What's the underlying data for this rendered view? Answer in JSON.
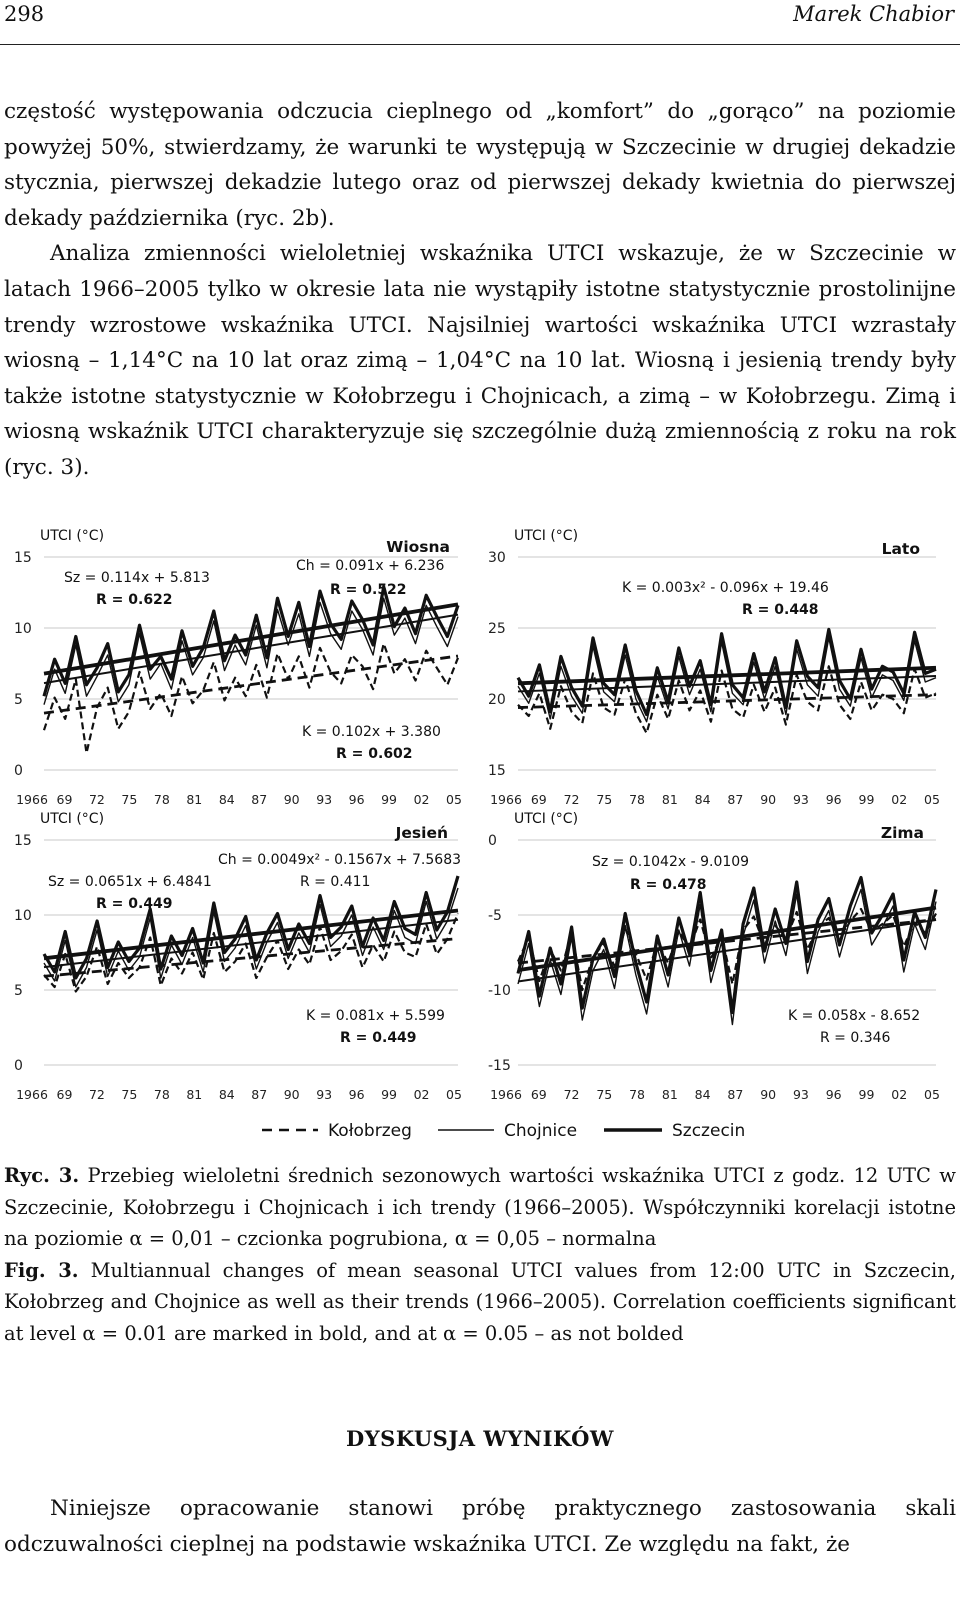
{
  "page_number": "298",
  "author": "Marek Chabior",
  "paragraph1": "częstość występowania odczucia cieplnego od „komfort” do „gorąco” na poziomie powyżej 50%, stwierdzamy, że warunki te występują w Szczecinie w drugiej dekadzie stycznia, pierwszej dekadzie lutego oraz od pierwszej dekady kwietnia do pierwszej dekady października (ryc. 2b).",
  "paragraph2": "Analiza zmienności wieloletniej wskaźnika UTCI wskazuje, że w Szczecinie w latach 1966–2005 tylko w okresie lata nie wystąpiły istotne statystycznie prostolinijne trendy wzrostowe wskaźnika UTCI. Najsilniej wartości wskaźnika UTCI wzrastały wiosną – 1,14°C na 10 lat oraz zimą – 1,04°C na 10 lat. Wiosną i jesienią trendy były także istotne statystycznie w Kołobrzegu i Chojnicach, a zimą – w Kołobrzegu. Zimą i wiosną wskaźnik UTCI charakteryzuje się szczególnie dużą zmiennością z roku na rok (ryc. 3).",
  "caption_pl_label": "Ryc. 3.",
  "caption_pl": "Przebieg wieloletni średnich sezonowych wartości wskaźnika UTCI z godz. 12 UTC w Szczecinie, Kołobrzegu i Chojnicach i ich trendy (1966–2005). Współczynniki korelacji istotne na poziomie α = 0,01 – czcionka pogrubiona, α = 0,05 – normalna",
  "caption_en_label": "Fig. 3.",
  "caption_en": "Multiannual changes of mean seasonal UTCI values from 12:00 UTC in Szczecin, Kołobrzeg and Chojnice as well as their trends (1966–2005). Correlation coefficients significant at level α = 0.01 are marked in bold, and at α = 0.05 – as not bolded",
  "section_heading": "DYSKUSJA WYNIKÓW",
  "paragraph3": "Niniejsze opracowanie stanowi próbę praktycznego zastosowania skali odczuwalności cieplnej na podstawie wskaźnika UTCI. Ze względu na fakt, że",
  "legend": [
    {
      "name": "Kołobrzeg",
      "style": "dashed"
    },
    {
      "name": "Chojnice",
      "style": "thin"
    },
    {
      "name": "Szczecin",
      "style": "thick"
    }
  ],
  "chart_data": [
    {
      "type": "line",
      "title": "Wiosna",
      "ylabel": "UTCI (°C)",
      "ylim": [
        0,
        15
      ],
      "yticks": [
        "15",
        "10",
        "5",
        "0"
      ],
      "xticks": [
        "1966",
        "69",
        "72",
        "75",
        "78",
        "81",
        "84",
        "87",
        "90",
        "93",
        "96",
        "99",
        "02",
        "05"
      ],
      "x_start": 1966,
      "annotations": [
        {
          "text": "Sz = 0.114x + 5.813",
          "bold": false
        },
        {
          "text": "R = 0.622",
          "bold": true
        },
        {
          "text": "Ch = 0.091x + 6.236",
          "bold": false
        },
        {
          "text": "R = 0.522",
          "bold": true
        },
        {
          "text": "K = 0.102x + 3.380",
          "bold": false
        },
        {
          "text": "R = 0.602",
          "bold": true
        }
      ],
      "series": [
        {
          "name": "Szczecin",
          "values": [
            5.2,
            7.8,
            6.1,
            9.4,
            6.0,
            7.2,
            8.9,
            5.5,
            6.7,
            10.2,
            7.1,
            8.0,
            6.4,
            9.8,
            7.3,
            8.6,
            11.2,
            7.7,
            9.5,
            8.1,
            10.9,
            7.9,
            12.1,
            9.4,
            11.8,
            8.7,
            12.6,
            10.3,
            9.2,
            11.9,
            10.6,
            8.8,
            12.9,
            10.1,
            11.4,
            9.6,
            12.3,
            10.8,
            9.4,
            11.6
          ]
        },
        {
          "name": "Chojnice",
          "values": [
            4.6,
            7.1,
            5.4,
            8.8,
            5.2,
            6.6,
            8.1,
            4.8,
            6.0,
            9.6,
            6.4,
            7.5,
            5.7,
            9.1,
            6.7,
            7.9,
            10.5,
            7.0,
            8.8,
            7.4,
            10.2,
            7.2,
            11.3,
            8.8,
            11.0,
            8.0,
            11.8,
            9.6,
            8.5,
            11.2,
            9.9,
            8.1,
            12.1,
            9.5,
            10.7,
            8.9,
            11.6,
            10.1,
            8.7,
            10.8
          ]
        },
        {
          "name": "Kołobrzeg",
          "values": [
            2.8,
            5.1,
            3.6,
            6.4,
            1.2,
            4.4,
            5.8,
            2.9,
            4.1,
            6.9,
            4.3,
            5.4,
            3.8,
            6.6,
            4.7,
            5.6,
            7.6,
            4.9,
            6.5,
            5.2,
            7.4,
            5.1,
            8.2,
            6.4,
            8.0,
            5.8,
            8.6,
            6.9,
            6.1,
            8.1,
            7.3,
            5.7,
            8.9,
            6.8,
            7.8,
            6.3,
            8.4,
            7.2,
            6.0,
            7.9
          ]
        }
      ]
    },
    {
      "type": "line",
      "title": "Lato",
      "ylabel": "UTCI (°C)",
      "ylim": [
        15,
        30
      ],
      "yticks": [
        "30",
        "25",
        "20",
        "15"
      ],
      "xticks": [
        "1966",
        "69",
        "72",
        "75",
        "78",
        "81",
        "84",
        "87",
        "90",
        "93",
        "96",
        "99",
        "02",
        "05"
      ],
      "x_start": 1966,
      "annotations": [
        {
          "text": "K = 0.003x² - 0.096x + 19.46",
          "bold": false
        },
        {
          "text": "R = 0.448",
          "bold": true
        }
      ],
      "series": [
        {
          "name": "Szczecin",
          "values": [
            21.5,
            20.2,
            22.4,
            19.1,
            23.0,
            20.8,
            19.5,
            24.3,
            21.1,
            20.3,
            23.8,
            20.6,
            18.9,
            22.2,
            19.8,
            23.6,
            20.9,
            22.7,
            19.6,
            24.6,
            21.0,
            20.1,
            23.2,
            20.5,
            22.9,
            19.4,
            24.1,
            21.6,
            20.8,
            24.9,
            21.3,
            20.0,
            23.5,
            20.7,
            22.3,
            21.9,
            20.4,
            24.7,
            21.8,
            22.1
          ]
        },
        {
          "name": "Chojnice",
          "values": [
            20.9,
            19.7,
            21.8,
            18.6,
            22.3,
            20.2,
            19.0,
            23.7,
            20.5,
            19.8,
            23.1,
            20.0,
            18.4,
            21.6,
            19.3,
            23.0,
            20.3,
            22.1,
            19.1,
            24.0,
            20.4,
            19.6,
            22.6,
            20.0,
            22.3,
            18.9,
            23.5,
            21.0,
            20.2,
            24.3,
            20.7,
            19.5,
            22.9,
            20.1,
            21.7,
            21.3,
            19.9,
            24.1,
            21.2,
            21.5
          ]
        },
        {
          "name": "Kołobrzeg",
          "values": [
            19.6,
            18.8,
            20.4,
            17.9,
            20.9,
            19.1,
            18.3,
            21.8,
            19.4,
            18.9,
            21.4,
            19.0,
            17.6,
            20.3,
            18.6,
            21.3,
            19.2,
            20.6,
            18.4,
            22.0,
            19.3,
            18.7,
            21.0,
            19.1,
            20.8,
            18.2,
            21.7,
            19.8,
            19.2,
            22.3,
            19.6,
            18.6,
            21.2,
            19.2,
            20.3,
            20.0,
            19.0,
            22.1,
            20.1,
            20.4
          ]
        }
      ]
    },
    {
      "type": "line",
      "title": "Jesień",
      "ylabel": "UTCI (°C)",
      "ylim": [
        0,
        15
      ],
      "yticks": [
        "15",
        "10",
        "5",
        "0"
      ],
      "xticks": [
        "1966",
        "69",
        "72",
        "75",
        "78",
        "81",
        "84",
        "87",
        "90",
        "93",
        "96",
        "99",
        "02",
        "05"
      ],
      "x_start": 1966,
      "annotations": [
        {
          "text": "Ch = 0.0049x² - 0.1567x + 7.5683",
          "bold": false
        },
        {
          "text": "R = 0.411",
          "bold": false
        },
        {
          "text": "Sz = 0.0651x + 6.4841",
          "bold": false
        },
        {
          "text": "R = 0.449",
          "bold": true
        },
        {
          "text": "K = 0.081x + 5.599",
          "bold": false
        },
        {
          "text": "R = 0.449",
          "bold": true
        }
      ],
      "series": [
        {
          "name": "Szczecin",
          "values": [
            7.4,
            6.2,
            8.9,
            5.8,
            7.1,
            9.6,
            6.5,
            8.2,
            6.9,
            7.8,
            10.4,
            6.4,
            8.6,
            7.3,
            9.1,
            6.8,
            10.8,
            7.5,
            8.4,
            9.9,
            7.0,
            8.8,
            10.1,
            7.7,
            9.4,
            8.1,
            11.3,
            8.5,
            9.2,
            10.6,
            7.9,
            9.8,
            8.3,
            10.9,
            9.1,
            8.7,
            11.5,
            9.0,
            10.2,
            12.6
          ]
        },
        {
          "name": "Chojnice",
          "values": [
            6.8,
            5.6,
            8.3,
            5.2,
            6.5,
            9.0,
            5.9,
            7.6,
            6.3,
            7.2,
            9.8,
            5.8,
            8.0,
            6.7,
            8.5,
            6.2,
            10.2,
            6.9,
            7.8,
            9.3,
            6.4,
            8.2,
            9.5,
            7.1,
            8.8,
            7.5,
            10.7,
            7.9,
            8.6,
            10.0,
            7.3,
            9.2,
            7.7,
            10.3,
            8.5,
            8.1,
            10.9,
            8.4,
            9.6,
            11.8
          ]
        },
        {
          "name": "Kołobrzeg",
          "values": [
            6.0,
            5.2,
            7.4,
            4.9,
            5.9,
            7.9,
            5.4,
            6.8,
            5.8,
            6.5,
            8.5,
            5.3,
            7.1,
            6.1,
            7.5,
            5.7,
            8.8,
            6.2,
            6.9,
            8.1,
            5.8,
            7.2,
            8.3,
            6.4,
            7.7,
            6.7,
            9.2,
            7.0,
            7.6,
            8.7,
            6.5,
            8.0,
            6.9,
            8.9,
            7.5,
            7.2,
            9.4,
            7.4,
            8.4,
            10.1
          ]
        }
      ]
    },
    {
      "type": "line",
      "title": "Zima",
      "ylabel": "UTCI (°C)",
      "ylim": [
        -15,
        0
      ],
      "yticks": [
        "0",
        "-5",
        "-10",
        "-15"
      ],
      "xticks": [
        "1966",
        "69",
        "72",
        "75",
        "78",
        "81",
        "84",
        "87",
        "90",
        "93",
        "96",
        "99",
        "02",
        "05"
      ],
      "x_start": 1966,
      "annotations": [
        {
          "text": "Sz = 0.1042x - 9.0109",
          "bold": false
        },
        {
          "text": "R = 0.478",
          "bold": true
        },
        {
          "text": "K = 0.058x - 8.652",
          "bold": false
        },
        {
          "text": "R = 0.346",
          "bold": false
        }
      ],
      "series": [
        {
          "name": "Szczecin",
          "values": [
            -8.9,
            -6.1,
            -10.4,
            -7.2,
            -9.6,
            -5.8,
            -11.2,
            -7.9,
            -6.6,
            -9.1,
            -4.9,
            -8.2,
            -10.8,
            -6.4,
            -9.0,
            -5.2,
            -7.6,
            -3.5,
            -8.7,
            -6.0,
            -11.5,
            -5.6,
            -3.2,
            -7.4,
            -4.6,
            -6.9,
            -2.8,
            -8.1,
            -5.3,
            -3.9,
            -7.0,
            -4.4,
            -2.5,
            -6.2,
            -5.0,
            -3.6,
            -8.0,
            -4.8,
            -6.5,
            -3.3
          ]
        },
        {
          "name": "Chojnice",
          "values": [
            -9.6,
            -6.9,
            -11.1,
            -8.0,
            -10.3,
            -6.5,
            -12.0,
            -8.7,
            -7.3,
            -9.9,
            -5.7,
            -9.0,
            -11.6,
            -7.2,
            -9.8,
            -6.0,
            -8.4,
            -4.3,
            -9.5,
            -6.8,
            -12.3,
            -6.4,
            -4.0,
            -8.2,
            -5.4,
            -7.7,
            -3.6,
            -8.9,
            -6.1,
            -4.7,
            -7.8,
            -5.2,
            -3.3,
            -7.0,
            -5.8,
            -4.4,
            -8.8,
            -5.6,
            -7.3,
            -4.1
          ]
        },
        {
          "name": "Kołobrzeg",
          "values": [
            -8.1,
            -6.5,
            -9.4,
            -7.3,
            -8.7,
            -6.2,
            -10.0,
            -7.8,
            -6.9,
            -8.4,
            -5.9,
            -7.6,
            -9.3,
            -6.8,
            -8.2,
            -6.1,
            -7.2,
            -5.3,
            -7.9,
            -6.4,
            -9.6,
            -6.0,
            -5.1,
            -7.0,
            -5.7,
            -6.6,
            -4.8,
            -7.3,
            -5.8,
            -5.2,
            -6.7,
            -5.4,
            -4.6,
            -6.1,
            -5.6,
            -5.0,
            -7.1,
            -5.5,
            -6.2,
            -4.9
          ]
        }
      ]
    }
  ]
}
